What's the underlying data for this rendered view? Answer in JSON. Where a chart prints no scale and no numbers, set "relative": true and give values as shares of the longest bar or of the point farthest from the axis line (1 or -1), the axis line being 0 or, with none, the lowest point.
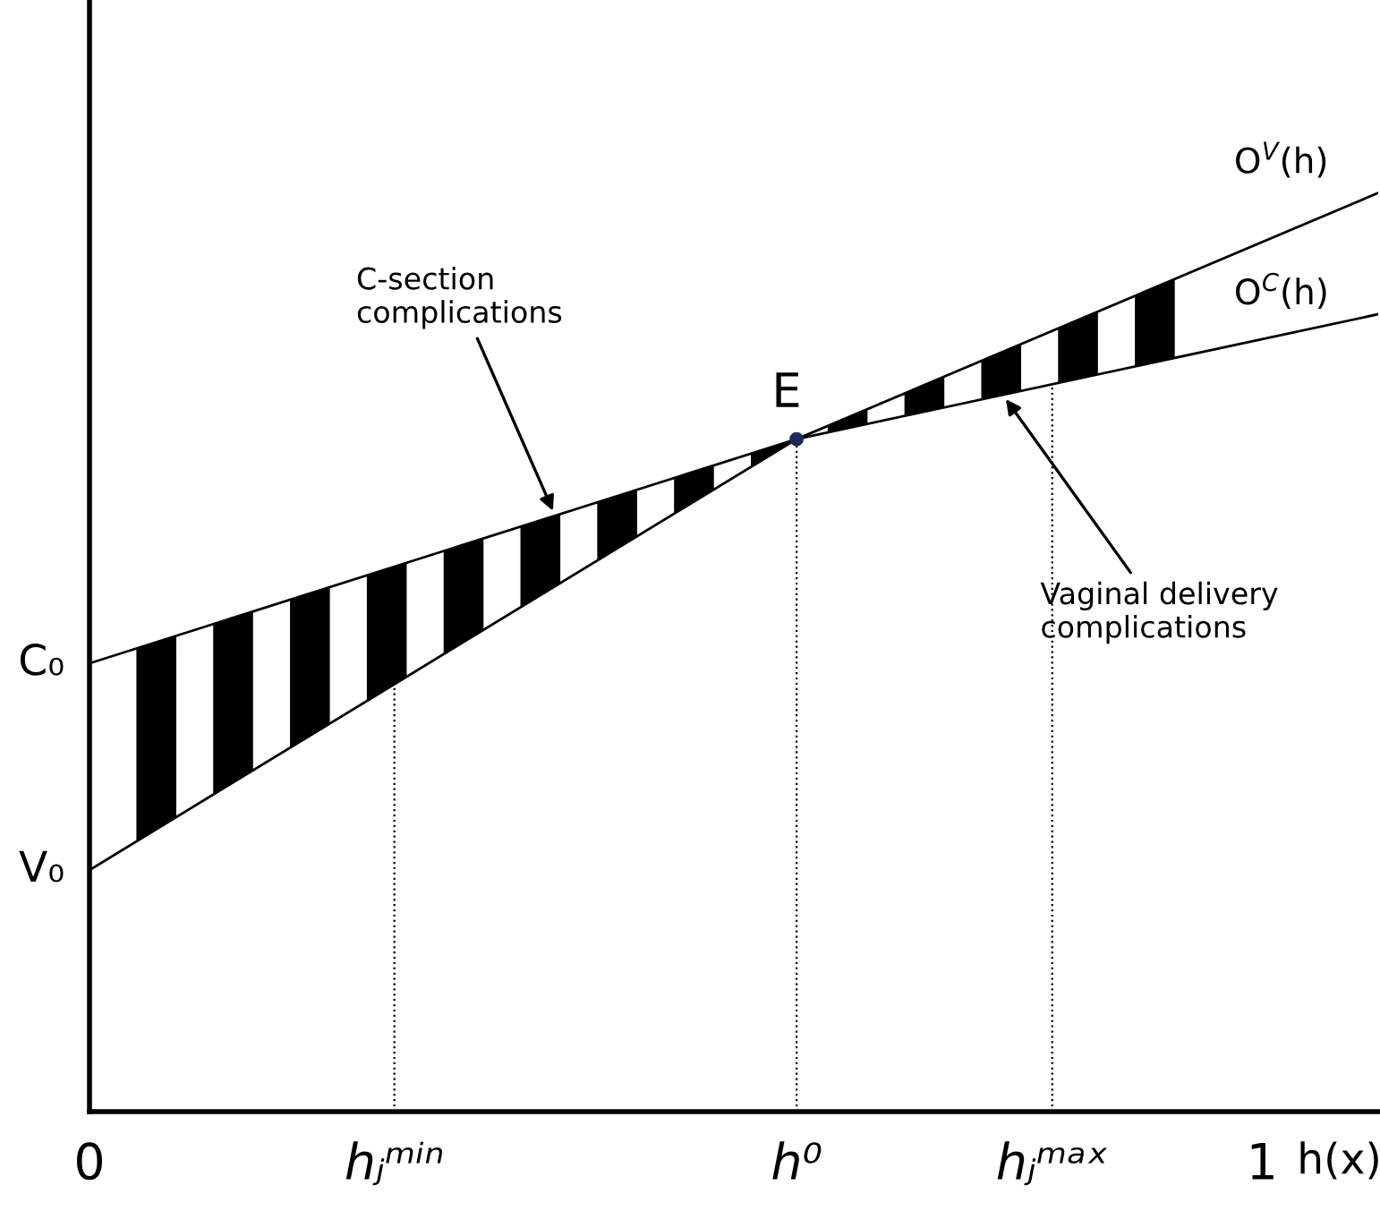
{
  "chart_data": {
    "type": "line",
    "relative": true,
    "xlabel": "h(x)",
    "xlim": [
      0,
      1.099
    ],
    "xticks": [
      0,
      1
    ],
    "series": [
      {
        "name": "O$^{V}$(h)",
        "color": "#000000",
        "x": [
          0,
          0.603,
          1.099
        ],
        "values": [
          0.263,
          0.732,
          1.0
        ]
      },
      {
        "name": "O$^{C}$(h)",
        "color": "#000000",
        "x": [
          0,
          0.603,
          1.099
        ],
        "values": [
          0.488,
          0.732,
          0.868
        ]
      },
      {
        "type": "scatter",
        "marker": "circle",
        "color": "#1f2a5a",
        "x": [
          0.603
        ],
        "values": [
          0.732
        ]
      }
    ],
    "ref_lines": [
      {
        "axis": "x",
        "value": 0.26,
        "label": "hⱼᵐⁱⁿ",
        "line_style": "dotted"
      },
      {
        "axis": "x",
        "value": 0.603,
        "label": "h⁰",
        "line_style": "dotted"
      },
      {
        "axis": "x",
        "value": 0.821,
        "label": "hⱼᵐᵃˣ",
        "line_style": "dotted"
      }
    ],
    "annotations": [
      {
        "text": "E",
        "x": 0.603,
        "y": 0.732
      },
      {
        "text": "C₀",
        "x": 0,
        "y": 0.488
      },
      {
        "text": "V₀",
        "x": 0,
        "y": 0.263
      },
      {
        "text": "C-section\ncomplications",
        "x": 0.397,
        "y": 0.649
      },
      {
        "text": "Vaginal delivery\ncomplications",
        "x": 0.779,
        "y": 0.78
      }
    ],
    "grid": false,
    "legend": false,
    "line_style": "solid"
  }
}
